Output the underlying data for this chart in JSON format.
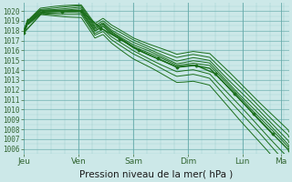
{
  "xlabel": "Pression niveau de la mer( hPa )",
  "bg_color": "#cce8e8",
  "grid_color_major": "#66aaaa",
  "grid_color_minor": "#99cccc",
  "line_color": "#1a6e1a",
  "ylim": [
    1005.5,
    1020.8
  ],
  "yticks": [
    1006,
    1007,
    1008,
    1009,
    1010,
    1011,
    1012,
    1013,
    1014,
    1015,
    1016,
    1017,
    1018,
    1019,
    1020
  ],
  "xtick_labels": [
    "Jeu",
    "Ven",
    "Sam",
    "Dim",
    "Lun",
    "Ma"
  ],
  "xtick_positions": [
    0,
    1,
    2,
    3,
    4,
    4.7
  ],
  "xlim": [
    0,
    4.85
  ],
  "xlabel_fontsize": 7.5,
  "ytick_fontsize": 5.5,
  "xtick_fontsize": 6.5
}
